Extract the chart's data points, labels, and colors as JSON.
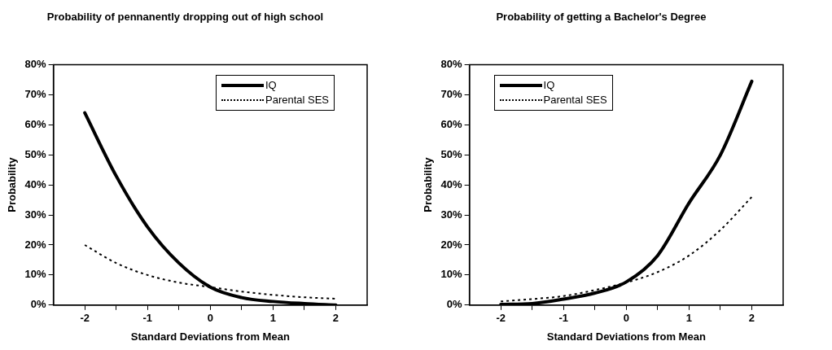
{
  "chart_data": [
    {
      "type": "line",
      "title": "Probability of pennanently dropping out of high school",
      "xlabel": "Standard Deviations from Mean",
      "ylabel": "Probability",
      "x": [
        -2,
        -1.5,
        -1,
        -0.5,
        0,
        0.5,
        1,
        1.5,
        2
      ],
      "series": [
        {
          "name": "IQ",
          "color": "#000000",
          "line_style": "solid",
          "values": [
            64,
            43,
            26,
            14,
            6,
            2.5,
            1.2,
            0.5,
            0
          ]
        },
        {
          "name": "Parental SES",
          "color": "#000000",
          "line_style": "dotted",
          "values": [
            20,
            14,
            10,
            7.5,
            6,
            4.5,
            3.4,
            2.6,
            2.1
          ]
        }
      ],
      "xlim": [
        -2.5,
        2.5
      ],
      "xticks": [
        -2,
        {
          "value": -1.5,
          "label": null
        },
        -1,
        {
          "value": -0.5,
          "label": null
        },
        0,
        {
          "value": 0.5,
          "label": null
        },
        1,
        {
          "value": 1.5,
          "label": null
        },
        2
      ],
      "ylim": [
        0,
        80
      ],
      "yticks": [
        {
          "value": 0,
          "label": "0%"
        },
        {
          "value": 10,
          "label": "10%"
        },
        {
          "value": 20,
          "label": "20%"
        },
        {
          "value": 30,
          "label": "30%"
        },
        {
          "value": 40,
          "label": "40%"
        },
        {
          "value": 50,
          "label": "50%"
        },
        {
          "value": 60,
          "label": "60%"
        },
        {
          "value": 70,
          "label": "70%"
        },
        {
          "value": 80,
          "label": "80%"
        }
      ],
      "legend": "top right",
      "marker": "none",
      "grid": false
    },
    {
      "type": "line",
      "title": "Probability of getting a Bachelor's Degree",
      "xlabel": "Standard Deviations from Mean",
      "ylabel": "Probability",
      "x": [
        -2,
        -1.5,
        -1,
        -0.5,
        0,
        0.5,
        1,
        1.5,
        2
      ],
      "series": [
        {
          "name": "IQ",
          "color": "#000000",
          "line_style": "solid",
          "values": [
            0.2,
            0.5,
            2,
            4,
            7.7,
            16.5,
            34,
            50,
            74.5
          ]
        },
        {
          "name": "Parental SES",
          "color": "#000000",
          "line_style": "dotted",
          "values": [
            1.2,
            2,
            3,
            5,
            7.5,
            11,
            16.5,
            25,
            36
          ]
        }
      ],
      "xlim": [
        -2.5,
        2.5
      ],
      "xticks": [
        -2,
        {
          "value": -1.5,
          "label": null
        },
        -1,
        {
          "value": -0.5,
          "label": null
        },
        0,
        {
          "value": 0.5,
          "label": null
        },
        1,
        {
          "value": 1.5,
          "label": null
        },
        2
      ],
      "ylim": [
        0,
        80
      ],
      "yticks": [
        {
          "value": 0,
          "label": "0%"
        },
        {
          "value": 10,
          "label": "10%"
        },
        {
          "value": 20,
          "label": "20%"
        },
        {
          "value": 30,
          "label": "30%"
        },
        {
          "value": 40,
          "label": "40%"
        },
        {
          "value": 50,
          "label": "50%"
        },
        {
          "value": 60,
          "label": "60%"
        },
        {
          "value": 70,
          "label": "70%"
        },
        {
          "value": 80,
          "label": "80%"
        }
      ],
      "legend": "top left",
      "marker": "none",
      "grid": false
    }
  ]
}
